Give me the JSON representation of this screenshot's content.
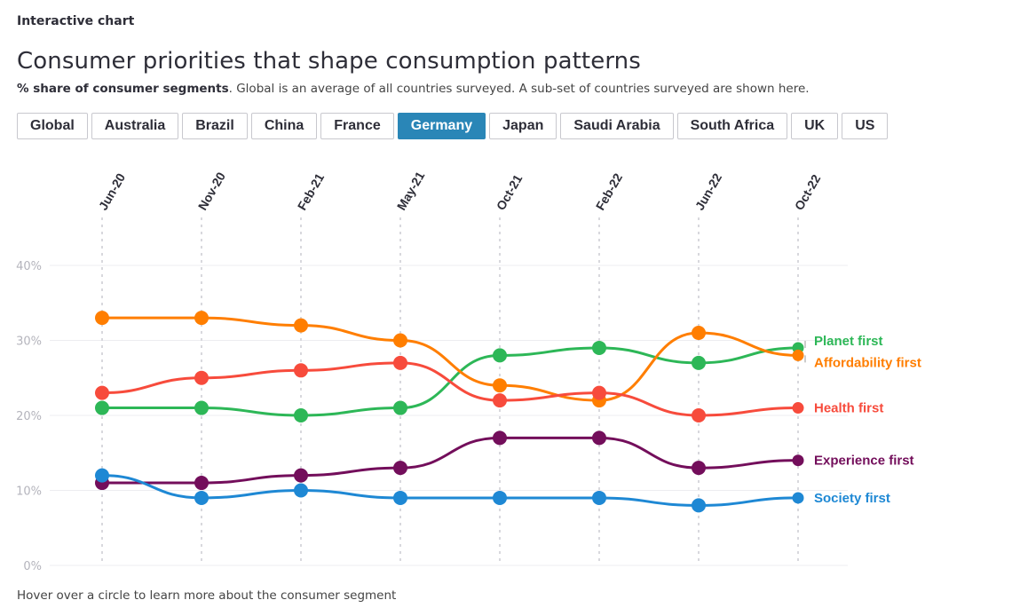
{
  "header": {
    "eyebrow": "Interactive chart",
    "title": "Consumer priorities that shape consumption patterns",
    "subtitle_bold": "% share of consumer segments",
    "subtitle_rest": ". Global is an average of all countries surveyed. A sub-set of countries surveyed are shown here."
  },
  "tabs": [
    {
      "label": "Global",
      "active": false
    },
    {
      "label": "Australia",
      "active": false
    },
    {
      "label": "Brazil",
      "active": false
    },
    {
      "label": "China",
      "active": false
    },
    {
      "label": "France",
      "active": false
    },
    {
      "label": "Germany",
      "active": true
    },
    {
      "label": "Japan",
      "active": false
    },
    {
      "label": "Saudi Arabia",
      "active": false
    },
    {
      "label": "South Africa",
      "active": false
    },
    {
      "label": "UK",
      "active": false
    },
    {
      "label": "US",
      "active": false
    }
  ],
  "footer": "Hover over a circle to learn more about the consumer segment",
  "chart_data": {
    "type": "line",
    "title": "Consumer priorities that shape consumption patterns",
    "x": [
      "Jun-20",
      "Nov-20",
      "Feb-21",
      "May-21",
      "Oct-21",
      "Feb-22",
      "Jun-22",
      "Oct-22"
    ],
    "ylim": [
      0,
      40
    ],
    "yticks": [
      0,
      10,
      20,
      30,
      40
    ],
    "ytick_labels": [
      "0%",
      "10%",
      "20%",
      "30%",
      "40%"
    ],
    "grid": true,
    "legend_placement": "right, inline at line ends",
    "series": [
      {
        "name": "Planet first",
        "color": "#2db757",
        "values": [
          21,
          21,
          20,
          21,
          28,
          29,
          27,
          29
        ]
      },
      {
        "name": "Affordability first",
        "color": "#ff7e00",
        "values": [
          33,
          33,
          32,
          30,
          24,
          22,
          31,
          28
        ]
      },
      {
        "name": "Health first",
        "color": "#f74b3c",
        "values": [
          23,
          25,
          26,
          27,
          22,
          23,
          20,
          21
        ]
      },
      {
        "name": "Experience first",
        "color": "#730e5b",
        "values": [
          11,
          11,
          12,
          13,
          17,
          17,
          13,
          14
        ]
      },
      {
        "name": "Society first",
        "color": "#1e88d4",
        "values": [
          12,
          9,
          10,
          9,
          9,
          9,
          8,
          9
        ]
      }
    ]
  }
}
